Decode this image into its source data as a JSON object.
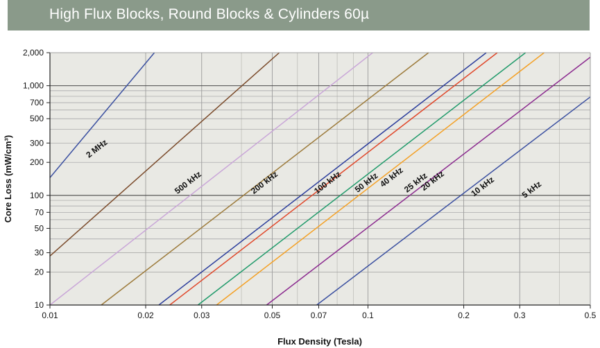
{
  "header": {
    "title": "High Flux Blocks, Round Blocks & Cylinders 60µ"
  },
  "chart_data": {
    "type": "line",
    "title": "High Flux Blocks, Round Blocks & Cylinders 60µ",
    "xlabel": "Flux Density (Tesla)",
    "ylabel": "Core Loss (mW/cm³)",
    "xscale": "log",
    "yscale": "log",
    "xlim": [
      0.01,
      0.5
    ],
    "ylim": [
      10,
      2000
    ],
    "grid": true,
    "x_ticks": [
      0.01,
      0.02,
      0.03,
      0.05,
      0.07,
      0.1,
      0.2,
      0.3,
      0.5
    ],
    "x_tick_labels": [
      "0.01",
      "0.02",
      "0.03",
      "0.05",
      "0.07",
      "0.1",
      "0.2",
      "0.3",
      "0.5"
    ],
    "y_ticks": [
      10,
      20,
      30,
      50,
      70,
      100,
      200,
      300,
      500,
      700,
      1000,
      2000
    ],
    "y_tick_labels": [
      "10",
      "20",
      "30",
      "50",
      "70",
      "100",
      "200",
      "300",
      "500",
      "700",
      "1,000",
      "2,000"
    ],
    "series": [
      {
        "name": "2 MHz",
        "color": "#3a4fa0",
        "x": [
          0.01,
          0.0213
        ],
        "y": [
          145,
          2000
        ]
      },
      {
        "name": "500 kHz",
        "color": "#7a4a2a",
        "x": [
          0.01,
          0.0526
        ],
        "y": [
          28,
          2000
        ]
      },
      {
        "name": "200 kHz",
        "color": "#c9a6d8",
        "x": [
          0.01,
          0.1035
        ],
        "y": [
          10,
          2000
        ]
      },
      {
        "name": "100 kHz",
        "color": "#9c7a3a",
        "x": [
          0.0145,
          0.155
        ],
        "y": [
          10,
          2000
        ]
      },
      {
        "name": "50 kHz",
        "color": "#2b3d9c",
        "x": [
          0.022,
          0.2355
        ],
        "y": [
          10,
          2000
        ]
      },
      {
        "name": "40 kHz",
        "color": "#e0472a",
        "x": [
          0.0238,
          0.255
        ],
        "y": [
          10,
          2000
        ]
      },
      {
        "name": "25 kHz",
        "color": "#1f9a6a",
        "x": [
          0.0292,
          0.3129
        ],
        "y": [
          10,
          2000
        ]
      },
      {
        "name": "20 kHz",
        "color": "#f4a024",
        "x": [
          0.0334,
          0.3579
        ],
        "y": [
          10,
          2000
        ]
      },
      {
        "name": "10 kHz",
        "color": "#8b2a8f",
        "x": [
          0.048,
          0.5
        ],
        "y": [
          10,
          1820
        ]
      },
      {
        "name": "5 kHz",
        "color": "#3a4fa0",
        "x": [
          0.069,
          0.5
        ],
        "y": [
          10,
          790
        ]
      }
    ]
  }
}
